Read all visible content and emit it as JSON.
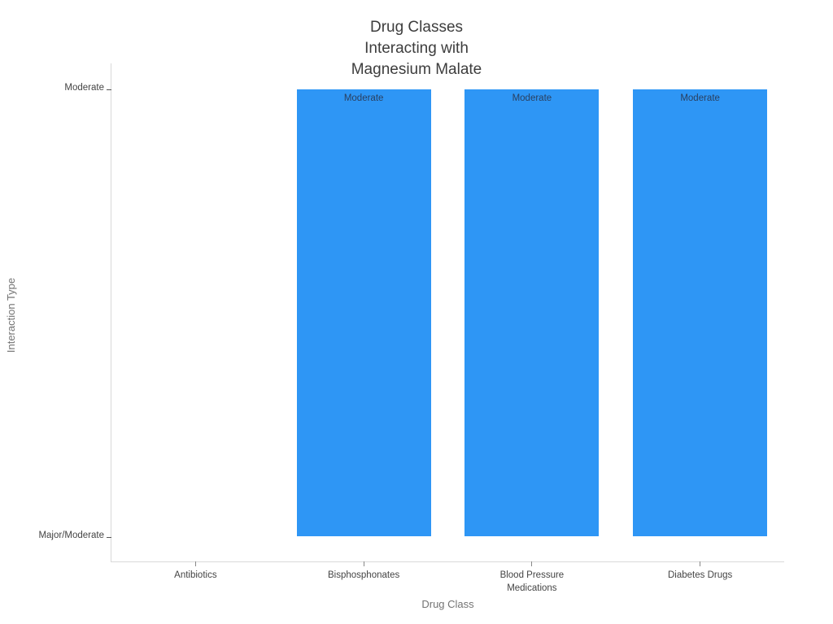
{
  "chart_data": {
    "type": "bar",
    "title": "Drug Classes\nInteracting with\nMagnesium Malate",
    "xlabel": "Drug Class",
    "ylabel": "Interaction Type",
    "categories": [
      "Antibiotics",
      "Bisphosphonates",
      "Blood Pressure\nMedications",
      "Diabetes Drugs"
    ],
    "values": [
      0,
      1,
      1,
      1
    ],
    "value_labels": [
      "Major/Moderate",
      "Moderate",
      "Moderate",
      "Moderate"
    ],
    "bar_text": [
      "",
      "Moderate",
      "Moderate",
      "Moderate"
    ],
    "y_ticks": [
      {
        "label": "Major/Moderate",
        "value": 0
      },
      {
        "label": "Moderate",
        "value": 1
      }
    ],
    "axis_type": "category",
    "grid": false,
    "legend": false,
    "bar_color": "#2E96F5",
    "title_color": "#3d3d3d",
    "axis_title_color": "#737373",
    "tick_label_color": "#444444",
    "spine_color": "#d9d9d9"
  }
}
